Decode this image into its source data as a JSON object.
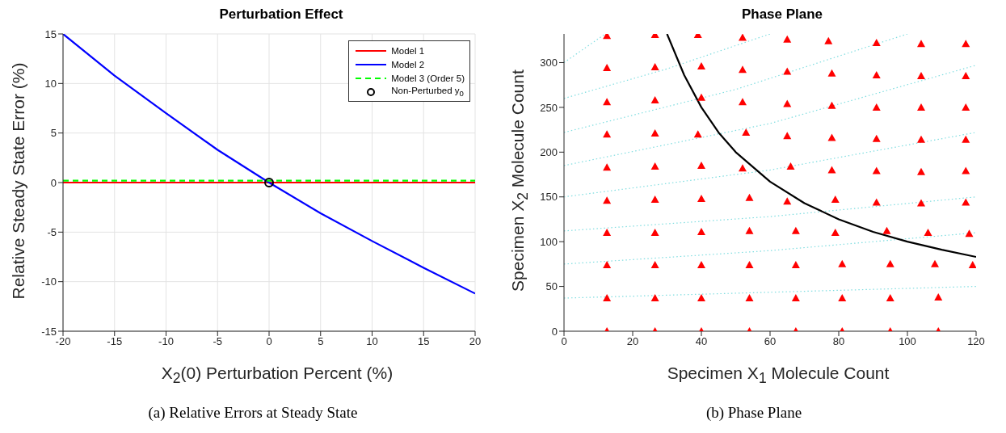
{
  "chart_data": [
    {
      "type": "line",
      "title": "Perturbation Effect",
      "xlabel": "X$_{2}$(0) Perturbation Percent (%)",
      "ylabel": "Relative Steady State Error (%)",
      "xlim": [
        -20,
        20
      ],
      "xticks": [
        -20,
        -15,
        -10,
        -5,
        0,
        5,
        10,
        15,
        20
      ],
      "ylim": [
        -15,
        15
      ],
      "yticks": [
        -15,
        -10,
        -5,
        0,
        5,
        10,
        15
      ],
      "grid": true,
      "legend": "top right",
      "series": [
        {
          "name": "Model 1",
          "color": "#ff0000",
          "x": [
            -20,
            20
          ],
          "values": [
            0,
            0
          ],
          "line_style": "solid"
        },
        {
          "name": "Model 2",
          "color": "#0000ff",
          "x": [
            -20,
            -15,
            -10,
            -5,
            0,
            5,
            10,
            15,
            20
          ],
          "values": [
            15,
            10.8,
            7,
            3.3,
            0,
            -3.1,
            -5.9,
            -8.6,
            -11.2
          ],
          "line_style": "solid"
        },
        {
          "name": "Model 3 (Order 5)",
          "color": "#00ff00",
          "x": [
            -20,
            20
          ],
          "values": [
            0.2,
            0.2
          ],
          "line_style": "dashed"
        },
        {
          "name": "Non-Perturbed y$_{0}$",
          "type": "scatter",
          "color": "#000000",
          "x": [
            0
          ],
          "values": [
            0
          ],
          "marker": "circle"
        }
      ],
      "annotations": [
        "(a) Relative Errors at Steady State"
      ]
    },
    {
      "type": "line",
      "title": "Phase Plane",
      "xlabel": "Specimen X$_{1}$ Molecule Count",
      "ylabel": "Specimen X$_{2}$ Molecule Count",
      "xlim": [
        0,
        120
      ],
      "xticks": [
        0,
        20,
        40,
        60,
        80,
        100,
        120
      ],
      "ylim": [
        0,
        332
      ],
      "yticks": [
        0,
        50,
        100,
        150,
        200,
        250,
        300
      ],
      "series": [
        {
          "color": "#7fdde0",
          "line_style": "dotted",
          "x": [
            0,
            120
          ],
          "values": [
            37,
            50
          ]
        },
        {
          "color": "#7fdde0",
          "line_style": "dotted",
          "x": [
            0,
            60,
            120
          ],
          "values": [
            75,
            90,
            110
          ]
        },
        {
          "color": "#7fdde0",
          "line_style": "dotted",
          "x": [
            0,
            60,
            120
          ],
          "values": [
            112,
            128,
            150
          ]
        },
        {
          "color": "#7fdde0",
          "line_style": "dotted",
          "x": [
            0,
            60,
            120
          ],
          "values": [
            150,
            180,
            222
          ]
        },
        {
          "color": "#7fdde0",
          "line_style": "dotted",
          "x": [
            0,
            60,
            120
          ],
          "values": [
            185,
            232,
            297
          ]
        },
        {
          "color": "#7fdde0",
          "line_style": "dotted",
          "x": [
            0,
            50,
            100
          ],
          "values": [
            222,
            270,
            332
          ]
        },
        {
          "color": "#7fdde0",
          "line_style": "dotted",
          "x": [
            0,
            30,
            60
          ],
          "values": [
            260,
            293,
            332
          ]
        },
        {
          "color": "#7fdde0",
          "line_style": "dotted",
          "x": [
            0,
            12
          ],
          "values": [
            300,
            332
          ]
        },
        {
          "color": "#ff0000",
          "type": "scatter",
          "marker": "triangle",
          "x": [
            12.5,
            26.5,
            40,
            54,
            67.5,
            81,
            95,
            109,
            12.5,
            26.5,
            40,
            54,
            67.5,
            81,
            95,
            109,
            12.5,
            26.5,
            40,
            54,
            67.5,
            81,
            95,
            108,
            119,
            12.5,
            26.5,
            40,
            54,
            67.5,
            79,
            94,
            106,
            118,
            12.5,
            26.5,
            40,
            54,
            65,
            79,
            91,
            104,
            117,
            12.5,
            26.5,
            40,
            52,
            66,
            78,
            91,
            104,
            117,
            12.5,
            26.5,
            39,
            53,
            65,
            78,
            91,
            104,
            117,
            12.5,
            26.5,
            40,
            52,
            65,
            78,
            91,
            104,
            117,
            12.5,
            26.5,
            40,
            52,
            65,
            78,
            91,
            104,
            117,
            12.5,
            26.5,
            39,
            52,
            65,
            77,
            91,
            104,
            117
          ],
          "values": [
            0,
            0,
            0,
            0,
            0,
            0,
            0,
            0,
            37,
            37,
            37,
            37,
            37,
            37,
            37,
            38,
            74,
            74,
            74,
            74,
            74,
            75,
            75,
            75,
            74,
            110,
            110,
            111,
            112,
            112,
            110,
            112,
            110,
            109,
            146,
            147,
            148,
            149,
            145,
            147,
            144,
            143,
            144,
            183,
            184,
            185,
            182,
            184,
            180,
            179,
            178,
            179,
            220,
            221,
            220,
            222,
            218,
            216,
            215,
            214,
            214,
            256,
            258,
            261,
            256,
            254,
            252,
            250,
            250,
            250,
            294,
            295,
            296,
            292,
            290,
            288,
            286,
            285,
            285,
            330,
            331,
            331,
            328,
            326,
            324,
            322,
            321,
            321
          ]
        },
        {
          "color": "#000000",
          "line_style": "solid",
          "x": [
            30,
            35,
            40,
            45,
            50,
            60,
            70,
            80,
            90,
            100,
            110,
            120
          ],
          "values": [
            332,
            286,
            250,
            222,
            200,
            167,
            143,
            125,
            111,
            100,
            91,
            83
          ]
        }
      ],
      "annotations": [
        "(b) Phase Plane"
      ]
    }
  ]
}
